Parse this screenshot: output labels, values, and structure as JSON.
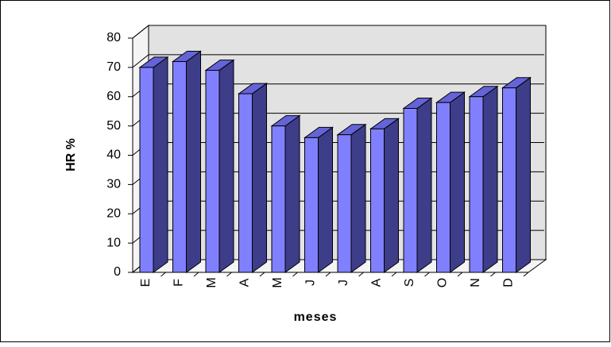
{
  "chart_data": {
    "type": "bar3d",
    "y_label": "HR %",
    "x_label": "meses",
    "categories": [
      "E",
      "F",
      "M",
      "A",
      "M",
      "J",
      "J",
      "A",
      "S",
      "O",
      "N",
      "D"
    ],
    "values": [
      70,
      72,
      69,
      61,
      50,
      46,
      47,
      49,
      56,
      58,
      60,
      63
    ],
    "color": "#8080ff",
    "side_color": "#3d3d8a",
    "top_color": "#6464d8",
    "ylim": [
      0,
      80
    ],
    "yticks": [
      0,
      10,
      20,
      30,
      40,
      50,
      60,
      70,
      80
    ],
    "grid": true
  }
}
